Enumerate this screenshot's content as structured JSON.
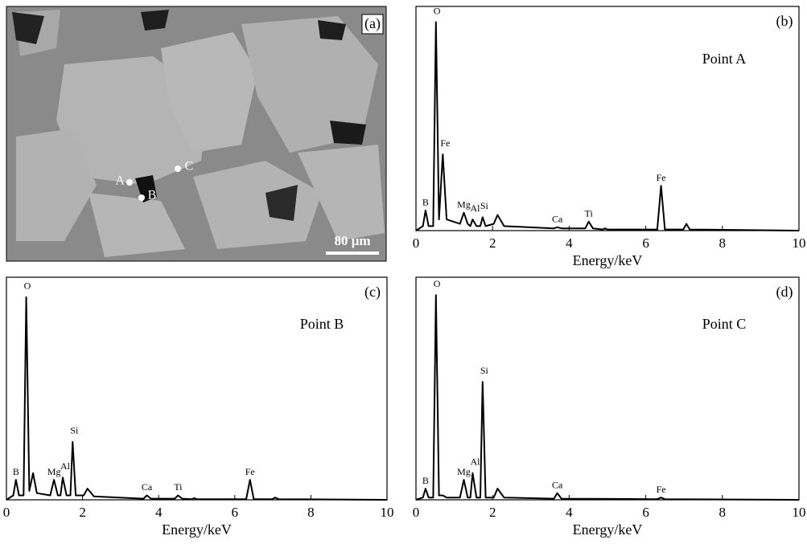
{
  "image_panel": {
    "tag": "(a)",
    "points": [
      "A",
      "B",
      "C"
    ],
    "scale_bar": "80 μm"
  },
  "chart_data": [
    {
      "type": "line",
      "tag": "(b)",
      "title": "Point A",
      "xlabel": "Energy/keV",
      "color": "#000000",
      "xlim": [
        0,
        10
      ],
      "ylim": [
        0,
        100
      ],
      "xticks": [
        0,
        2,
        4,
        6,
        8,
        10
      ],
      "x": [
        0,
        0.18,
        0.25,
        0.33,
        0.45,
        0.52,
        0.6,
        0.7,
        0.8,
        1.15,
        1.25,
        1.35,
        1.42,
        1.48,
        1.58,
        1.68,
        1.74,
        1.82,
        2.03,
        2.13,
        2.3,
        3.6,
        3.69,
        3.8,
        4.42,
        4.51,
        4.62,
        4.88,
        4.93,
        5.0,
        6.3,
        6.4,
        6.5,
        6.98,
        7.06,
        7.15,
        10
      ],
      "values": [
        0,
        2,
        9,
        2,
        2,
        93,
        5,
        34,
        5,
        3,
        8,
        3,
        2,
        5,
        2,
        2,
        6,
        2,
        3,
        7,
        2,
        1,
        1.5,
        1,
        1,
        4,
        1,
        0.5,
        1,
        0.5,
        0.5,
        20,
        0.5,
        0.5,
        3,
        0.5,
        0
      ],
      "labels": [
        null,
        null,
        "B",
        null,
        null,
        "O",
        null,
        "Fe",
        null,
        null,
        "Mg",
        null,
        null,
        "Al",
        null,
        null,
        "Si",
        null,
        null,
        null,
        null,
        null,
        "Ca",
        null,
        null,
        "Ti",
        null,
        null,
        null,
        null,
        null,
        "Fe",
        null,
        null,
        null,
        null,
        null
      ]
    },
    {
      "type": "line",
      "tag": "(c)",
      "title": "Point B",
      "xlabel": "Energy/keV",
      "color": "#000000",
      "xlim": [
        0,
        10
      ],
      "ylim": [
        0,
        100
      ],
      "xticks": [
        0,
        2,
        4,
        6,
        8,
        10
      ],
      "x": [
        0,
        0.18,
        0.25,
        0.33,
        0.45,
        0.52,
        0.6,
        0.7,
        0.8,
        1.15,
        1.25,
        1.35,
        1.42,
        1.48,
        1.58,
        1.68,
        1.74,
        1.82,
        2.03,
        2.13,
        2.3,
        3.6,
        3.69,
        3.8,
        4.42,
        4.51,
        4.62,
        4.88,
        4.93,
        5.0,
        6.3,
        6.4,
        6.5,
        6.98,
        7.06,
        7.15,
        10
      ],
      "values": [
        0,
        2,
        9,
        2,
        2,
        91,
        4,
        12,
        3,
        2,
        9,
        2,
        2,
        10,
        2,
        2,
        26,
        2,
        2,
        5,
        1.5,
        0.5,
        2,
        0.5,
        0.5,
        2,
        0.5,
        0.3,
        0.8,
        0.3,
        0.3,
        9,
        0.3,
        0.3,
        1,
        0.3,
        0
      ],
      "labels": [
        null,
        null,
        "B",
        null,
        null,
        "O",
        null,
        null,
        null,
        null,
        "Mg",
        null,
        null,
        "Al",
        null,
        null,
        "Si",
        null,
        null,
        null,
        null,
        null,
        "Ca",
        null,
        null,
        "Ti",
        null,
        null,
        null,
        null,
        null,
        "Fe",
        null,
        null,
        null,
        null,
        null
      ]
    },
    {
      "type": "line",
      "tag": "(d)",
      "title": "Point C",
      "xlabel": "Energy/keV",
      "color": "#000000",
      "xlim": [
        0,
        10
      ],
      "ylim": [
        0,
        100
      ],
      "xticks": [
        0,
        2,
        4,
        6,
        8,
        10
      ],
      "x": [
        0,
        0.18,
        0.25,
        0.33,
        0.45,
        0.52,
        0.6,
        0.7,
        0.8,
        1.15,
        1.25,
        1.35,
        1.42,
        1.48,
        1.58,
        1.68,
        1.74,
        1.82,
        2.03,
        2.13,
        2.3,
        3.6,
        3.69,
        3.8,
        6.3,
        6.4,
        6.5,
        10
      ],
      "values": [
        0,
        1,
        5,
        1,
        1,
        92,
        2,
        2,
        1,
        1,
        9,
        1,
        1,
        12,
        1,
        1,
        53,
        1,
        1,
        5,
        1,
        0.5,
        3,
        0.5,
        0.3,
        1,
        0.3,
        0
      ],
      "labels": [
        null,
        null,
        "B",
        null,
        null,
        "O",
        null,
        null,
        null,
        null,
        "Mg",
        null,
        null,
        "Al",
        null,
        null,
        "Si",
        null,
        null,
        null,
        null,
        null,
        "Ca",
        null,
        null,
        "Fe",
        null,
        null
      ]
    }
  ]
}
